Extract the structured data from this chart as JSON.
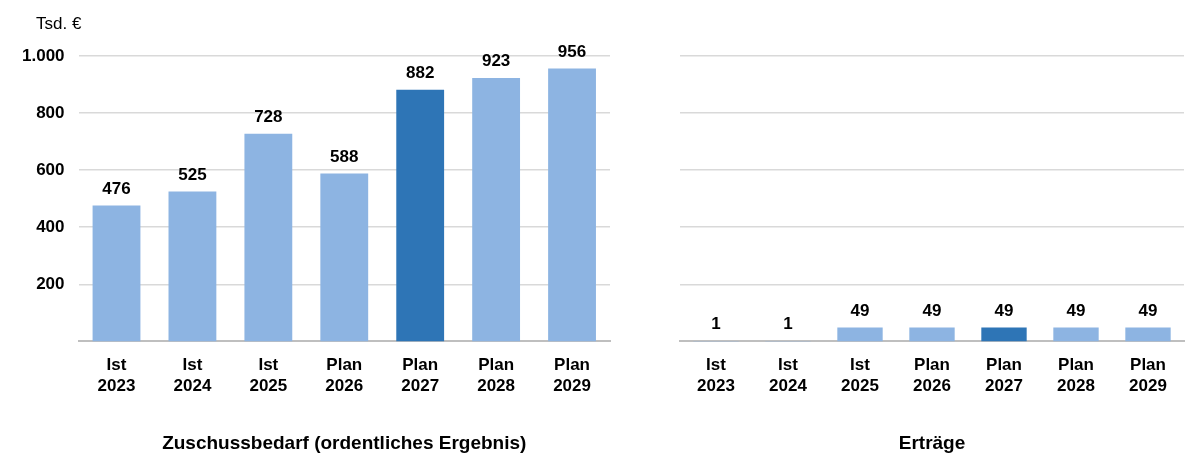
{
  "chart_data": [
    {
      "type": "bar",
      "ylabel": "Tsd. €",
      "xlabel": "Zuschussbedarf (ordentliches Ergebnis)",
      "categories": [
        "Ist 2023",
        "Ist 2024",
        "Ist 2025",
        "Plan 2026",
        "Plan 2027",
        "Plan 2028",
        "Plan 2029"
      ],
      "values": [
        476,
        525,
        728,
        588,
        882,
        923,
        956
      ],
      "colors": [
        "#8db4e2",
        "#8db4e2",
        "#8db4e2",
        "#8db4e2",
        "#2e75b6",
        "#8db4e2",
        "#8db4e2"
      ],
      "ylim": [
        0,
        1000
      ],
      "yticks": [
        200,
        400,
        600,
        800,
        {
          "value": 1000,
          "label": "1.000"
        }
      ],
      "grid": "y",
      "data_labels": true
    },
    {
      "type": "bar",
      "xlabel": "Erträge",
      "categories": [
        "Ist 2023",
        "Ist 2024",
        "Ist 2025",
        "Plan 2026",
        "Plan 2027",
        "Plan 2028",
        "Plan 2029"
      ],
      "values": [
        1,
        1,
        49,
        49,
        49,
        49,
        49
      ],
      "colors": [
        "#8db4e2",
        "#8db4e2",
        "#8db4e2",
        "#8db4e2",
        "#2e75b6",
        "#8db4e2",
        "#8db4e2"
      ],
      "ylim": [
        0,
        1000
      ],
      "yticks": [
        200,
        400,
        600,
        800,
        1000
      ],
      "grid": "y",
      "data_labels": true,
      "tick_labels": "x"
    }
  ]
}
